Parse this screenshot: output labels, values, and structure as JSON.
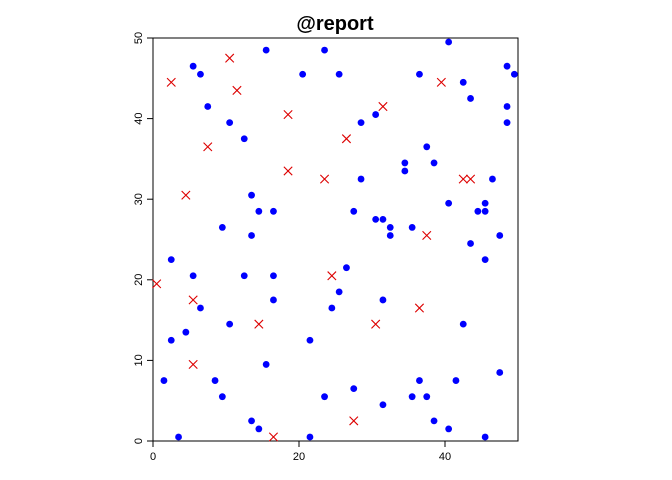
{
  "chart_data": {
    "type": "scatter",
    "title": "@report",
    "xlabel": "",
    "ylabel": "",
    "xlim": [
      0,
      50
    ],
    "ylim": [
      0,
      50
    ],
    "x_ticks": [
      0,
      20,
      40
    ],
    "y_ticks": [
      0,
      10,
      20,
      30,
      40,
      50
    ],
    "grid": false,
    "legend": "none",
    "series": [
      {
        "marker": "filled-circle",
        "color": "#0000ff",
        "points": [
          [
            1.5,
            7.5
          ],
          [
            2.5,
            22.5
          ],
          [
            2.5,
            12.5
          ],
          [
            3.5,
            0.5
          ],
          [
            4.5,
            13.5
          ],
          [
            5.5,
            46.5
          ],
          [
            5.5,
            20.5
          ],
          [
            6.5,
            45.5
          ],
          [
            6.5,
            16.5
          ],
          [
            7.5,
            41.5
          ],
          [
            8.5,
            7.5
          ],
          [
            9.5,
            26.5
          ],
          [
            9.5,
            5.5
          ],
          [
            10.5,
            39.5
          ],
          [
            10.5,
            14.5
          ],
          [
            12.5,
            37.5
          ],
          [
            12.5,
            20.5
          ],
          [
            13.5,
            30.5
          ],
          [
            13.5,
            25.5
          ],
          [
            13.5,
            2.5
          ],
          [
            14.5,
            28.5
          ],
          [
            14.5,
            1.5
          ],
          [
            15.5,
            48.5
          ],
          [
            15.5,
            9.5
          ],
          [
            16.5,
            28.5
          ],
          [
            16.5,
            20.5
          ],
          [
            16.5,
            17.5
          ],
          [
            20.5,
            45.5
          ],
          [
            21.5,
            12.5
          ],
          [
            21.5,
            0.5
          ],
          [
            23.5,
            48.5
          ],
          [
            23.5,
            5.5
          ],
          [
            24.5,
            16.5
          ],
          [
            25.5,
            45.5
          ],
          [
            25.5,
            18.5
          ],
          [
            26.5,
            21.5
          ],
          [
            27.5,
            28.5
          ],
          [
            27.5,
            6.5
          ],
          [
            28.5,
            39.5
          ],
          [
            28.5,
            32.5
          ],
          [
            30.5,
            40.5
          ],
          [
            30.5,
            27.5
          ],
          [
            31.5,
            27.5
          ],
          [
            31.5,
            17.5
          ],
          [
            31.5,
            4.5
          ],
          [
            32.5,
            26.5
          ],
          [
            32.5,
            25.5
          ],
          [
            34.5,
            34.5
          ],
          [
            34.5,
            33.5
          ],
          [
            35.5,
            26.5
          ],
          [
            35.5,
            5.5
          ],
          [
            36.5,
            45.5
          ],
          [
            36.5,
            7.5
          ],
          [
            37.5,
            36.5
          ],
          [
            37.5,
            5.5
          ],
          [
            38.5,
            34.5
          ],
          [
            38.5,
            2.5
          ],
          [
            40.5,
            49.5
          ],
          [
            40.5,
            29.5
          ],
          [
            40.5,
            1.5
          ],
          [
            41.5,
            7.5
          ],
          [
            42.5,
            44.5
          ],
          [
            42.5,
            14.5
          ],
          [
            43.5,
            42.5
          ],
          [
            43.5,
            24.5
          ],
          [
            44.5,
            28.5
          ],
          [
            45.5,
            29.5
          ],
          [
            45.5,
            28.5
          ],
          [
            45.5,
            22.5
          ],
          [
            45.5,
            0.5
          ],
          [
            46.5,
            32.5
          ],
          [
            47.5,
            25.5
          ],
          [
            47.5,
            8.5
          ],
          [
            48.5,
            46.5
          ],
          [
            48.5,
            41.5
          ],
          [
            48.5,
            39.5
          ],
          [
            49.5,
            45.5
          ]
        ]
      },
      {
        "marker": "x-cross",
        "color": "#dd0000",
        "points": [
          [
            0.5,
            19.5
          ],
          [
            2.5,
            44.5
          ],
          [
            4.5,
            30.5
          ],
          [
            5.5,
            17.5
          ],
          [
            5.5,
            9.5
          ],
          [
            7.5,
            36.5
          ],
          [
            10.5,
            47.5
          ],
          [
            11.5,
            43.5
          ],
          [
            14.5,
            14.5
          ],
          [
            16.5,
            0.5
          ],
          [
            18.5,
            40.5
          ],
          [
            18.5,
            33.5
          ],
          [
            23.5,
            32.5
          ],
          [
            24.5,
            20.5
          ],
          [
            26.5,
            37.5
          ],
          [
            27.5,
            2.5
          ],
          [
            30.5,
            14.5
          ],
          [
            31.5,
            41.5
          ],
          [
            36.5,
            16.5
          ],
          [
            37.5,
            25.5
          ],
          [
            39.5,
            44.5
          ],
          [
            42.5,
            32.5
          ],
          [
            43.5,
            32.5
          ]
        ]
      }
    ]
  }
}
